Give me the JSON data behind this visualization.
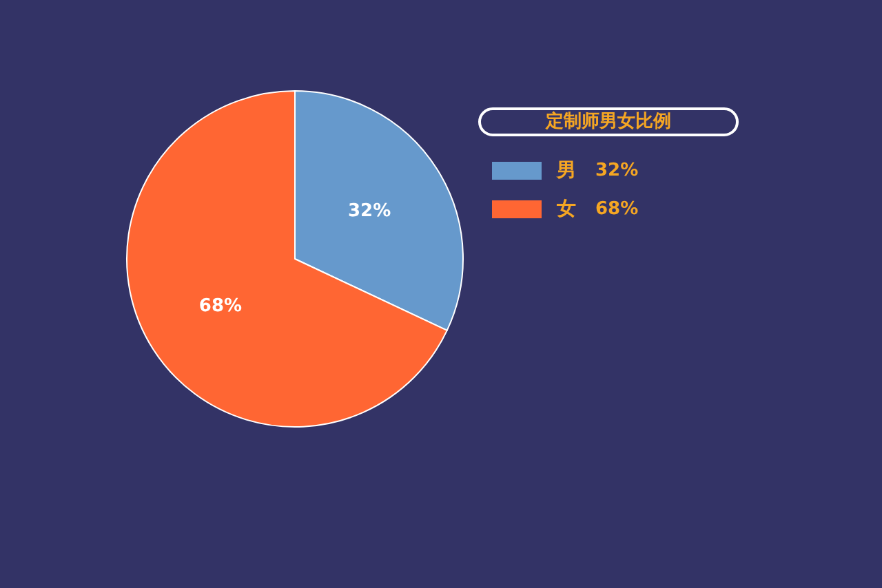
{
  "chart_data": {
    "type": "pie",
    "title": "定制师男女比例",
    "categories": [
      "男",
      "女"
    ],
    "values": [
      32,
      68
    ],
    "colors": [
      "#6699cc",
      "#ff6633"
    ],
    "value_labels": [
      "32%",
      "68%"
    ],
    "legend": "right"
  }
}
